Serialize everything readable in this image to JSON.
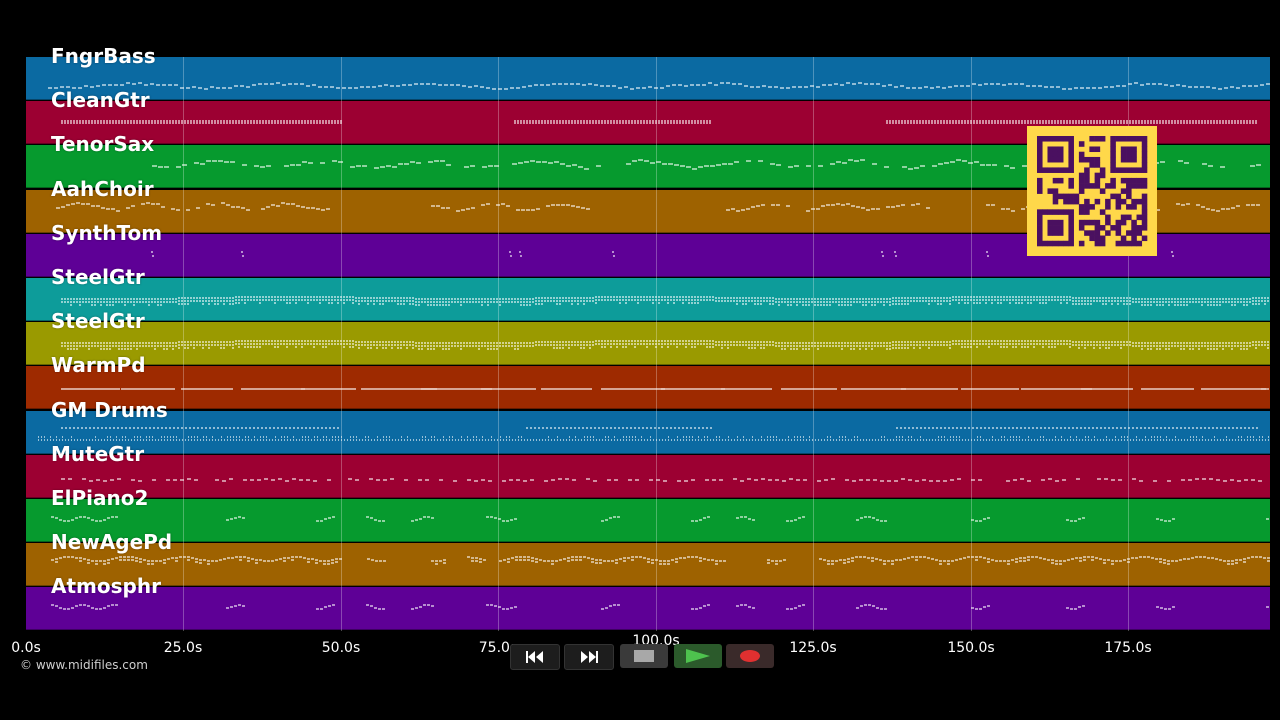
{
  "tracks": [
    {
      "name": "FngrBass",
      "color": "#0b6aa2",
      "pattern": "bassline"
    },
    {
      "name": "CleanGtr",
      "color": "#9c0032",
      "pattern": "strum-blocks"
    },
    {
      "name": "TenorSax",
      "color": "#069a2e",
      "pattern": "melody"
    },
    {
      "name": "AahChoir",
      "color": "#9e6200",
      "pattern": "phrases"
    },
    {
      "name": "SynthTom",
      "color": "#5e0096",
      "pattern": "sparse-hits"
    },
    {
      "name": "SteelGtr",
      "color": "#0d9c9a",
      "pattern": "dense-chords"
    },
    {
      "name": "SteelGtr",
      "color": "#9a9a00",
      "pattern": "dense-chords"
    },
    {
      "name": "WarmPd",
      "color": "#9e2a00",
      "pattern": "sustained"
    },
    {
      "name": "GM Drums",
      "color": "#0b6aa2",
      "pattern": "drums"
    },
    {
      "name": "MuteGtr",
      "color": "#9c0032",
      "pattern": "dotted"
    },
    {
      "name": "ElPiano2",
      "color": "#069a2e",
      "pattern": "motifs"
    },
    {
      "name": "NewAgePd",
      "color": "#9e6200",
      "pattern": "waves"
    },
    {
      "name": "Atmosphr",
      "color": "#5e0096",
      "pattern": "motifs"
    }
  ],
  "timeline": {
    "ticks": [
      "0.0s",
      "25.0s",
      "50.0s",
      "75.0s",
      "100.0s",
      "125.0s",
      "150.0s",
      "175.0s"
    ],
    "duration_s": 197.5
  },
  "copyright": "© www.midifiles.com",
  "qr": {
    "fg": "#4a1060",
    "bg": "#ffd84a"
  },
  "transport": {
    "buttons": [
      {
        "name": "rewind-button",
        "icon": "rewind-icon"
      },
      {
        "name": "fast-forward-button",
        "icon": "fast-forward-icon"
      },
      {
        "name": "stop-button",
        "icon": "stop-icon"
      },
      {
        "name": "play-button",
        "icon": "play-icon"
      },
      {
        "name": "record-button",
        "icon": "record-icon"
      }
    ]
  },
  "colors": {
    "background": "#000000",
    "grid": "rgba(255,255,255,0.28)",
    "note": "#ffffff"
  }
}
